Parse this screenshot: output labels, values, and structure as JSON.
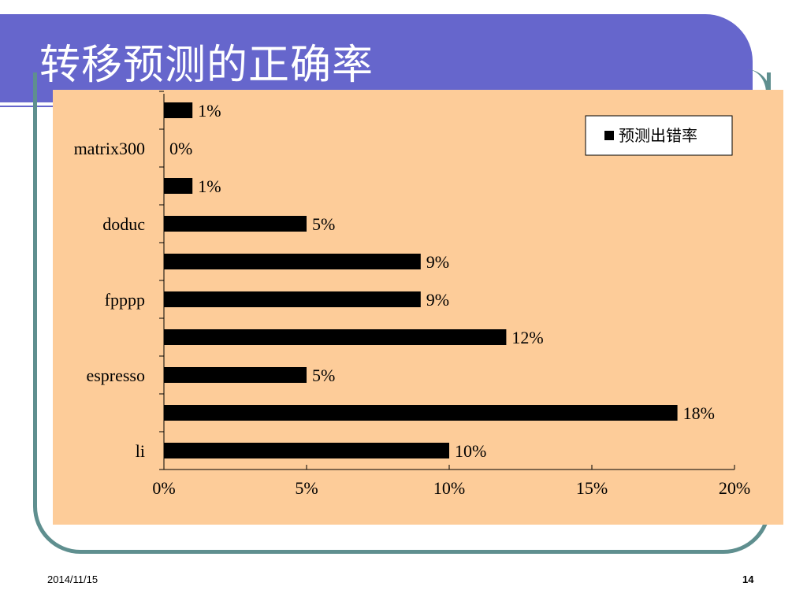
{
  "slide": {
    "title": "转移预测的正确率",
    "footer_date": "2014/11/15",
    "page_number": "14"
  },
  "colors": {
    "title_bar": "#6666cc",
    "chart_background": "#fdcc99",
    "frame": "#5f8f8f",
    "bar": "#000000"
  },
  "chart_data": {
    "type": "bar",
    "orientation": "horizontal",
    "categories": [
      "li",
      "",
      "espresso",
      "",
      "fpppp",
      "",
      "doduc",
      "",
      "matrix300",
      ""
    ],
    "series": [
      {
        "name": "预测出错率",
        "values": [
          10,
          18,
          5,
          12,
          9,
          9,
          5,
          1,
          0,
          1
        ]
      }
    ],
    "data_labels": [
      "10%",
      "18%",
      "5%",
      "12%",
      "9%",
      "9%",
      "5%",
      "1%",
      "0%",
      "1%"
    ],
    "x_ticks": [
      "0%",
      "5%",
      "10%",
      "15%",
      "20%"
    ],
    "xlim": [
      0,
      20
    ],
    "unit": "%",
    "legend_position": "top-right",
    "grid": false
  }
}
